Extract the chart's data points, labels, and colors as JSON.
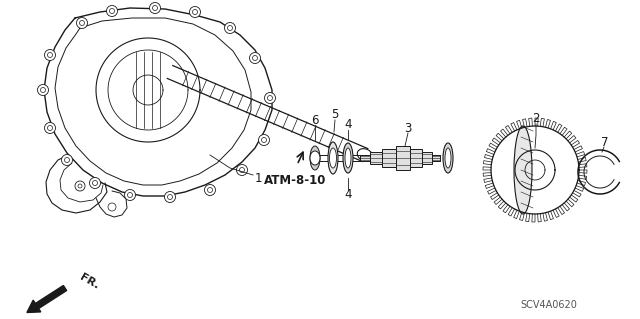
{
  "bg_color": "#ffffff",
  "line_color": "#1a1a1a",
  "atm_label": "ATM-8-10",
  "diagram_code": "SCV4A0620",
  "figsize": [
    6.4,
    3.19
  ],
  "dpi": 100
}
